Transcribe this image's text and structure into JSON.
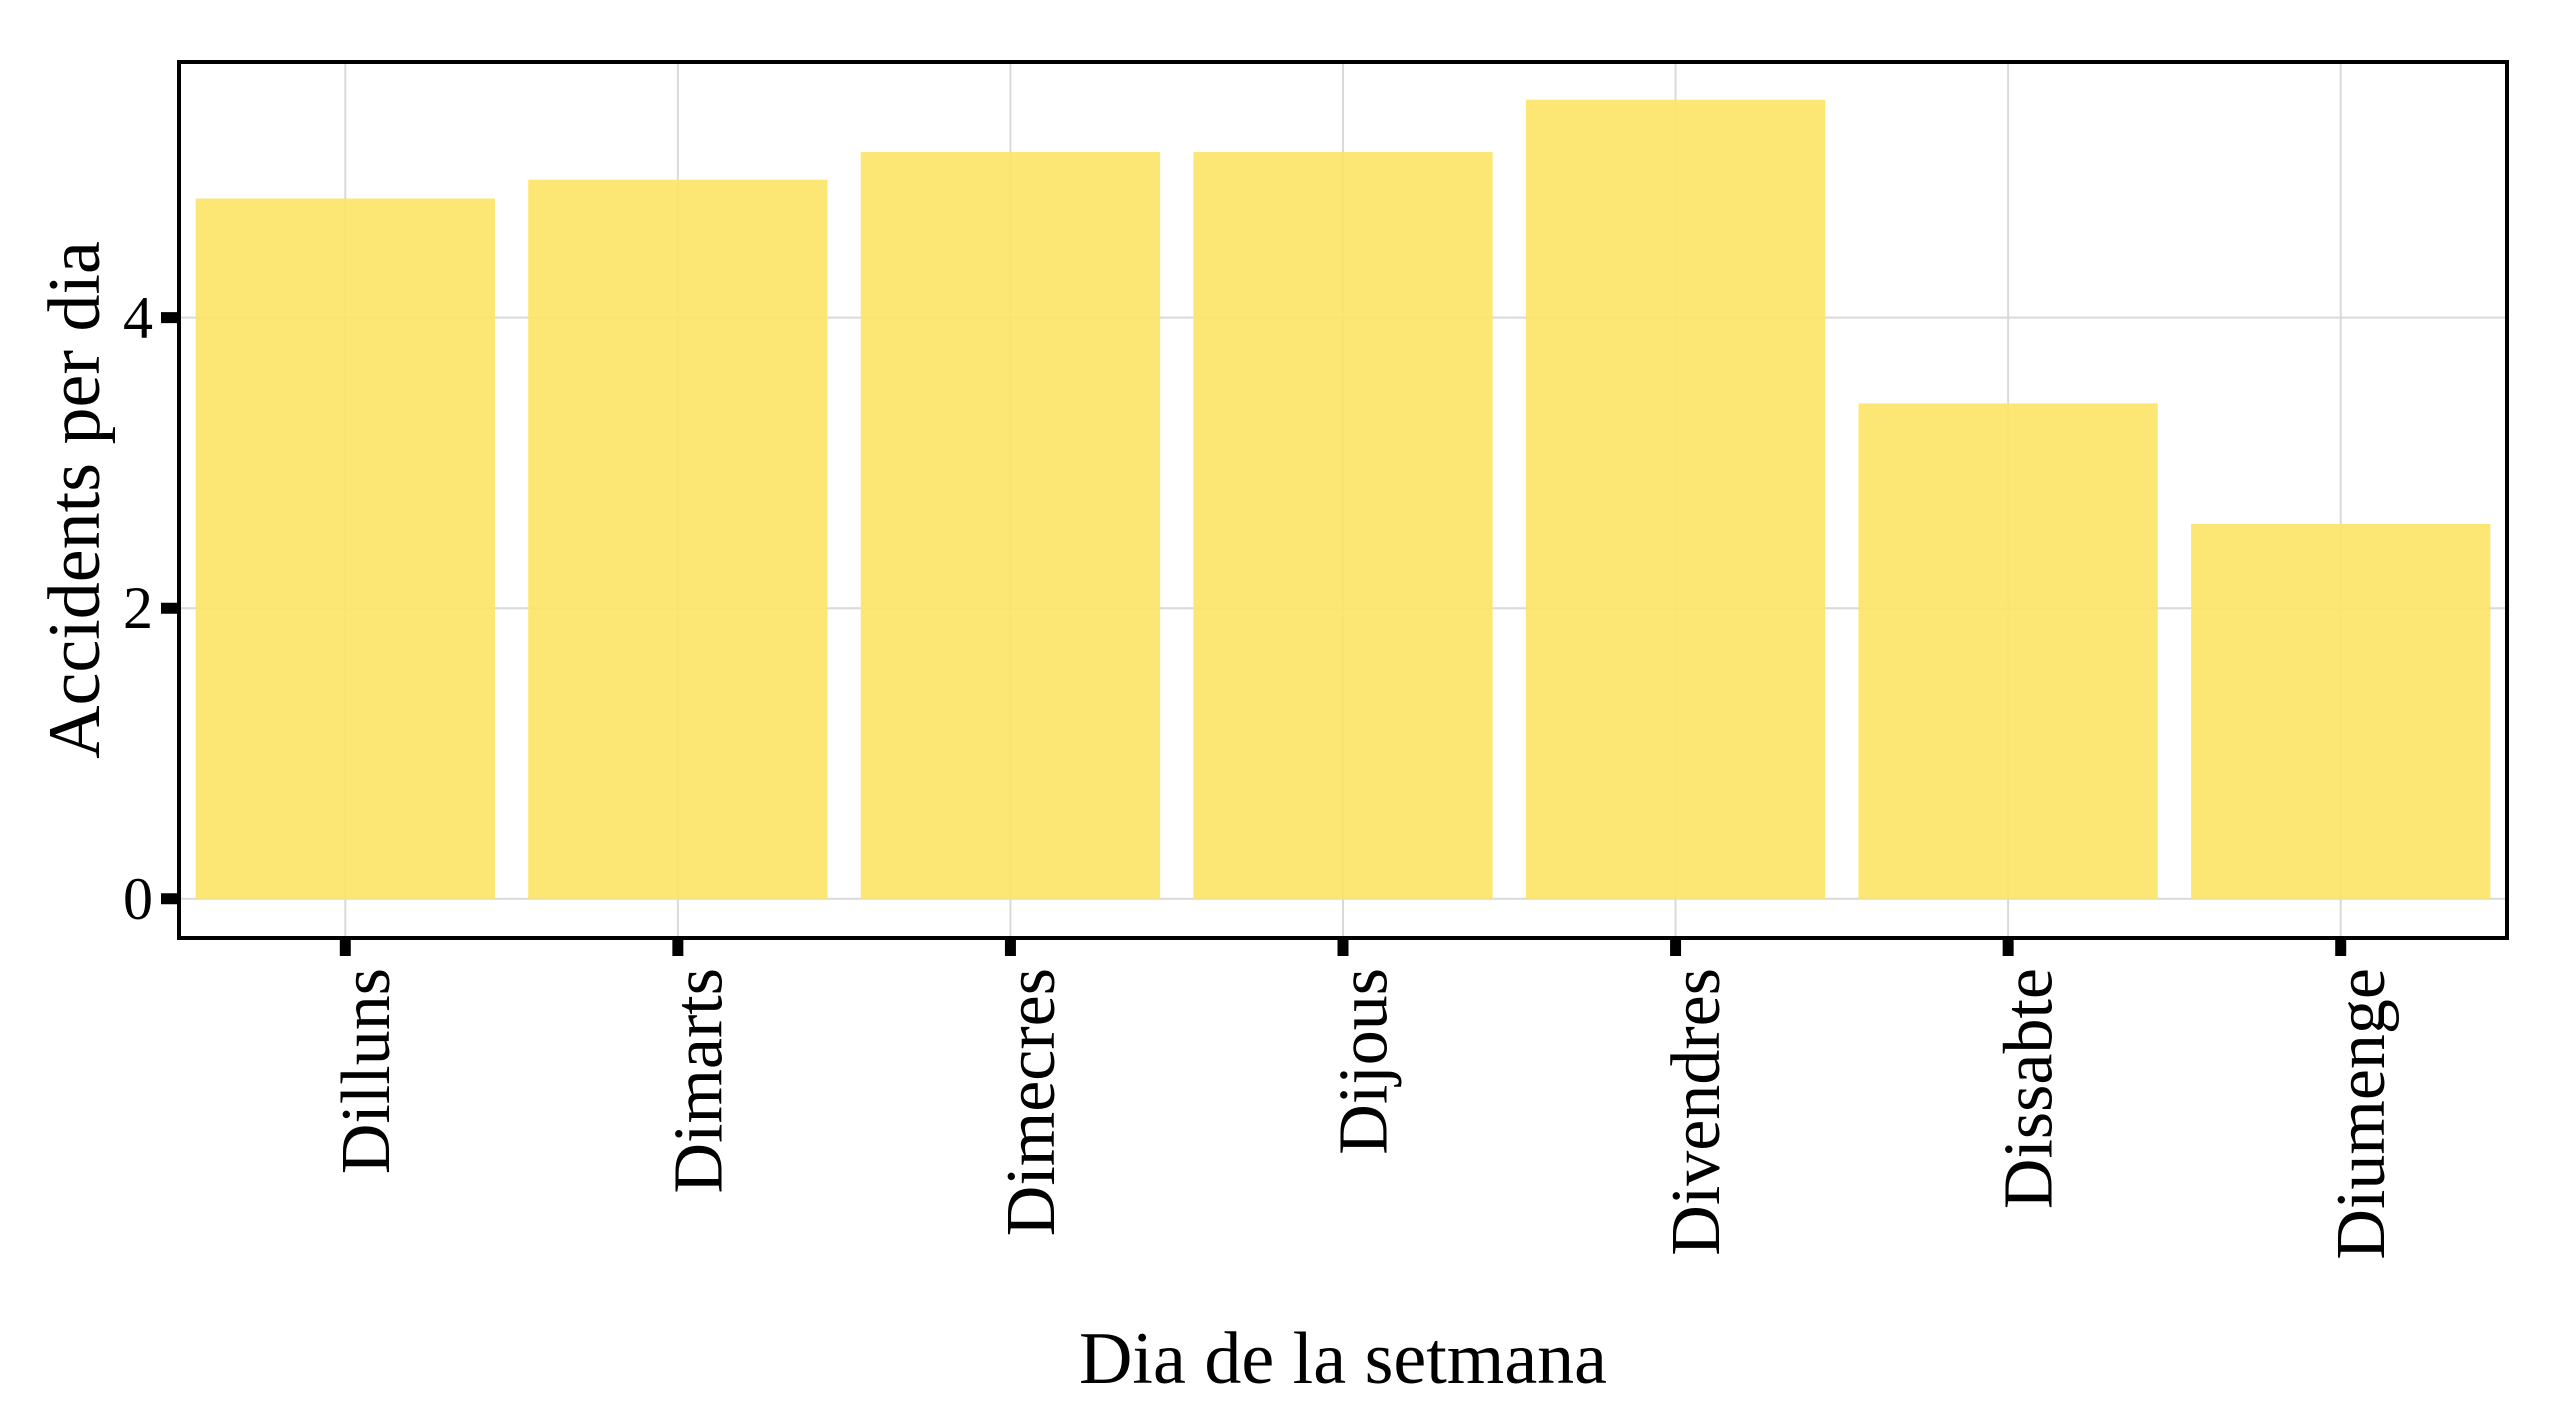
{
  "chart_data": {
    "type": "bar",
    "title": "",
    "xlabel": "Dia de la setmana",
    "ylabel": "Accidents per dia",
    "categories": [
      "Dilluns",
      "Dimarts",
      "Dimecres",
      "Dijous",
      "Divendres",
      "Dissabte",
      "Diumenge"
    ],
    "values": [
      4.82,
      4.95,
      5.14,
      5.14,
      5.5,
      3.41,
      2.58
    ],
    "yticks": [
      "0",
      "2",
      "4"
    ],
    "ylim": [
      -0.27,
      5.76
    ],
    "grid": true,
    "legend": "none",
    "colors": {
      "bar": "#FDE465"
    }
  }
}
